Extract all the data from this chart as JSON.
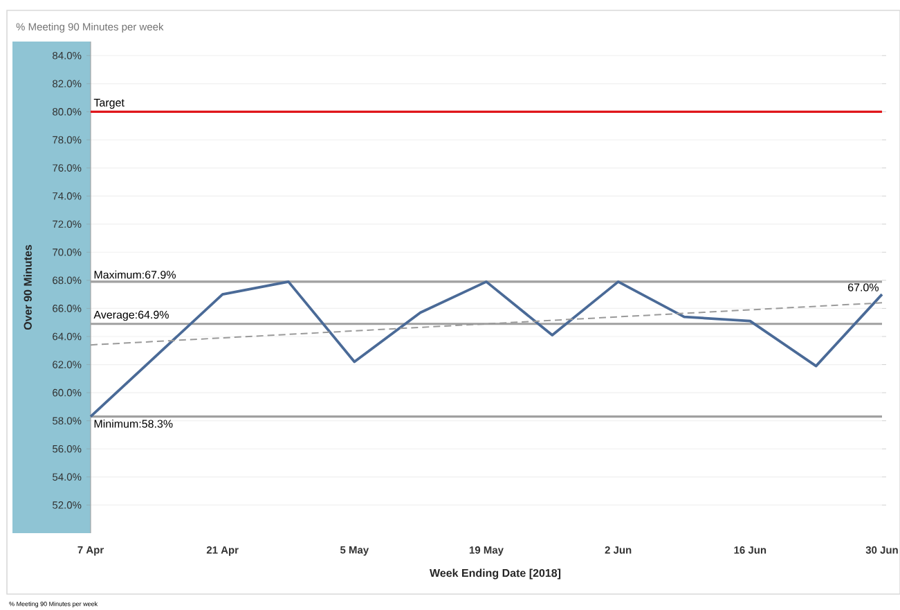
{
  "chart_data": {
    "type": "line",
    "title": "% Meeting 90 Minutes per week",
    "xlabel": "Week Ending Date [2018]",
    "ylabel": "Over 90 Minutes",
    "x": [
      "2018-04-07",
      "2018-04-21",
      "2018-04-28",
      "2018-05-05",
      "2018-05-12",
      "2018-05-19",
      "2018-05-26",
      "2018-06-02",
      "2018-06-09",
      "2018-06-16",
      "2018-06-23",
      "2018-06-30"
    ],
    "series": [
      {
        "color": "#4a6a97",
        "values": [
          58.3,
          67.0,
          67.9,
          62.2,
          65.7,
          67.9,
          64.1,
          67.9,
          65.4,
          65.1,
          61.9,
          67.0
        ],
        "value_labels": [
          null,
          null,
          null,
          null,
          null,
          null,
          null,
          null,
          null,
          null,
          null,
          "67.0%"
        ]
      },
      {
        "type": "line",
        "color": "#9a9a9a",
        "line_style": "dashed",
        "x": [
          "2018-04-07",
          "2018-06-30"
        ],
        "values": [
          63.4,
          66.4
        ]
      }
    ],
    "xlim": [
      "2018-04-07",
      "2018-06-30"
    ],
    "xticks": [
      {
        "value": "2018-04-07",
        "label": "7 Apr"
      },
      {
        "value": "2018-04-21",
        "label": "21 Apr"
      },
      {
        "value": "2018-05-05",
        "label": "5 May"
      },
      {
        "value": "2018-05-19",
        "label": "19 May"
      },
      {
        "value": "2018-06-02",
        "label": "2 Jun"
      },
      {
        "value": "2018-06-16",
        "label": "16 Jun"
      },
      {
        "value": "2018-06-30",
        "label": "30 Jun"
      }
    ],
    "ylim": [
      50,
      85
    ],
    "yticks": [
      {
        "value": 52,
        "label": "52.0%"
      },
      {
        "value": 54,
        "label": "54.0%"
      },
      {
        "value": 56,
        "label": "56.0%"
      },
      {
        "value": 58,
        "label": "58.0%"
      },
      {
        "value": 60,
        "label": "60.0%"
      },
      {
        "value": 62,
        "label": "62.0%"
      },
      {
        "value": 64,
        "label": "64.0%"
      },
      {
        "value": 66,
        "label": "66.0%"
      },
      {
        "value": 68,
        "label": "68.0%"
      },
      {
        "value": 70,
        "label": "70.0%"
      },
      {
        "value": 72,
        "label": "72.0%"
      },
      {
        "value": 74,
        "label": "74.0%"
      },
      {
        "value": 76,
        "label": "76.0%"
      },
      {
        "value": 78,
        "label": "78.0%"
      },
      {
        "value": 80,
        "label": "80.0%"
      },
      {
        "value": 82,
        "label": "82.0%"
      },
      {
        "value": 84,
        "label": "84.0%"
      }
    ],
    "ref_lines": [
      {
        "axis": "y",
        "value": 80,
        "label": "Target",
        "color": "#e0161b"
      },
      {
        "axis": "y",
        "value": 67.9,
        "label": "Maximum:67.9%",
        "color": "#a0a0a0"
      },
      {
        "axis": "y",
        "value": 64.9,
        "label": "Average:64.9%",
        "color": "#a0a0a0"
      },
      {
        "axis": "y",
        "value": 58.3,
        "label": "Minimum:58.3%",
        "color": "#a0a0a0"
      }
    ],
    "grid": "y",
    "annotations": [
      "% Meeting 90 Minutes per week"
    ]
  }
}
